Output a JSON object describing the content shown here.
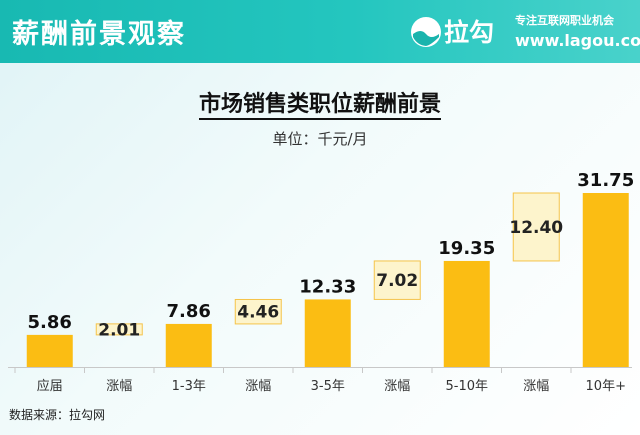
{
  "header": {
    "title": "薪酬前景观察",
    "logo_text": "拉勾",
    "slogan": "专注互联网职业机会",
    "url": "www.lagou.com"
  },
  "chart_data": {
    "type": "bar",
    "title": "市场销售类职位薪酬前景",
    "subtitle": "单位：千元/月",
    "categories": [
      "应届",
      "涨幅",
      "1-3年",
      "涨幅",
      "3-5年",
      "涨幅",
      "5-10年",
      "涨幅",
      "10年+"
    ],
    "values": [
      5.86,
      2.01,
      7.86,
      4.46,
      12.33,
      7.02,
      19.35,
      12.4,
      31.75
    ],
    "value_labels": [
      "5.86",
      "2.01",
      "7.86",
      "4.46",
      "12.33",
      "7.02",
      "19.35",
      "12.40",
      "31.75"
    ],
    "kinds": [
      "level",
      "increase",
      "level",
      "increase",
      "level",
      "increase",
      "level",
      "increase",
      "level"
    ],
    "ylim": [
      0,
      31.75
    ],
    "grid": false,
    "colors": {
      "level_bar": "#fbbd13",
      "increase_fill": "#fdf4cc",
      "increase_border": "#f5c34a",
      "axis": "#c8c8c8"
    }
  },
  "source": "数据来源：拉勾网"
}
